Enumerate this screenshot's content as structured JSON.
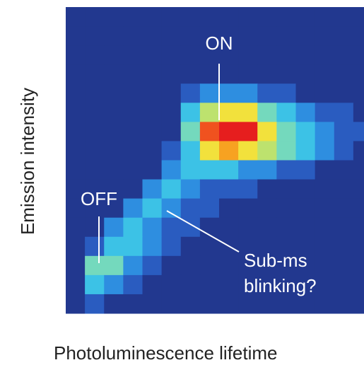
{
  "chart_data": {
    "type": "heatmap",
    "x_label": "Photoluminescence lifetime",
    "y_label": "Emission intensity",
    "zlim": [
      0,
      9
    ],
    "colormap": [
      "#22388f",
      "#2a5cc0",
      "#2e8ee0",
      "#3cc2e6",
      "#74d9bd",
      "#bde26e",
      "#f2e13c",
      "#f7a221",
      "#f0521f",
      "#e61e1e"
    ],
    "z": [
      [
        0,
        0,
        0,
        0,
        0,
        0,
        0,
        0,
        0,
        0,
        0,
        0,
        0,
        0,
        0,
        0
      ],
      [
        0,
        0,
        0,
        0,
        0,
        0,
        0,
        0,
        0,
        0,
        0,
        0,
        0,
        0,
        0,
        0
      ],
      [
        0,
        0,
        0,
        0,
        0,
        0,
        0,
        0,
        0,
        0,
        0,
        0,
        0,
        0,
        0,
        0
      ],
      [
        0,
        0,
        0,
        0,
        0,
        0,
        0,
        0,
        0,
        0,
        0,
        0,
        0,
        0,
        0,
        0
      ],
      [
        0,
        0,
        0,
        0,
        0,
        0,
        1,
        2,
        2,
        2,
        1,
        1,
        0,
        0,
        0,
        0
      ],
      [
        0,
        0,
        0,
        0,
        0,
        0,
        3,
        5,
        6,
        6,
        4,
        3,
        2,
        1,
        1,
        0
      ],
      [
        0,
        0,
        0,
        0,
        0,
        0,
        4,
        8,
        9,
        9,
        6,
        4,
        3,
        2,
        1,
        1
      ],
      [
        0,
        0,
        0,
        0,
        0,
        1,
        3,
        6,
        7,
        6,
        5,
        4,
        3,
        2,
        1,
        0
      ],
      [
        0,
        0,
        0,
        0,
        0,
        2,
        3,
        3,
        3,
        2,
        2,
        1,
        1,
        0,
        0,
        0
      ],
      [
        0,
        0,
        0,
        0,
        2,
        3,
        2,
        1,
        1,
        1,
        0,
        0,
        0,
        0,
        0,
        0
      ],
      [
        0,
        0,
        0,
        2,
        3,
        2,
        1,
        1,
        0,
        0,
        0,
        0,
        0,
        0,
        0,
        0
      ],
      [
        0,
        0,
        2,
        3,
        2,
        1,
        1,
        0,
        0,
        0,
        0,
        0,
        0,
        0,
        0,
        0
      ],
      [
        0,
        1,
        3,
        3,
        2,
        1,
        0,
        0,
        0,
        0,
        0,
        0,
        0,
        0,
        0,
        0
      ],
      [
        0,
        4,
        4,
        2,
        1,
        0,
        0,
        0,
        0,
        0,
        0,
        0,
        0,
        0,
        0,
        0
      ],
      [
        0,
        3,
        2,
        1,
        0,
        0,
        0,
        0,
        0,
        0,
        0,
        0,
        0,
        0,
        0,
        0
      ],
      [
        0,
        1,
        0,
        0,
        0,
        0,
        0,
        0,
        0,
        0,
        0,
        0,
        0,
        0,
        0,
        0
      ]
    ],
    "annotations": [
      {
        "lines": [
          "ON"
        ]
      },
      {
        "lines": [
          "OFF"
        ]
      },
      {
        "lines": [
          "Sub-ms",
          "blinking?"
        ]
      }
    ]
  }
}
